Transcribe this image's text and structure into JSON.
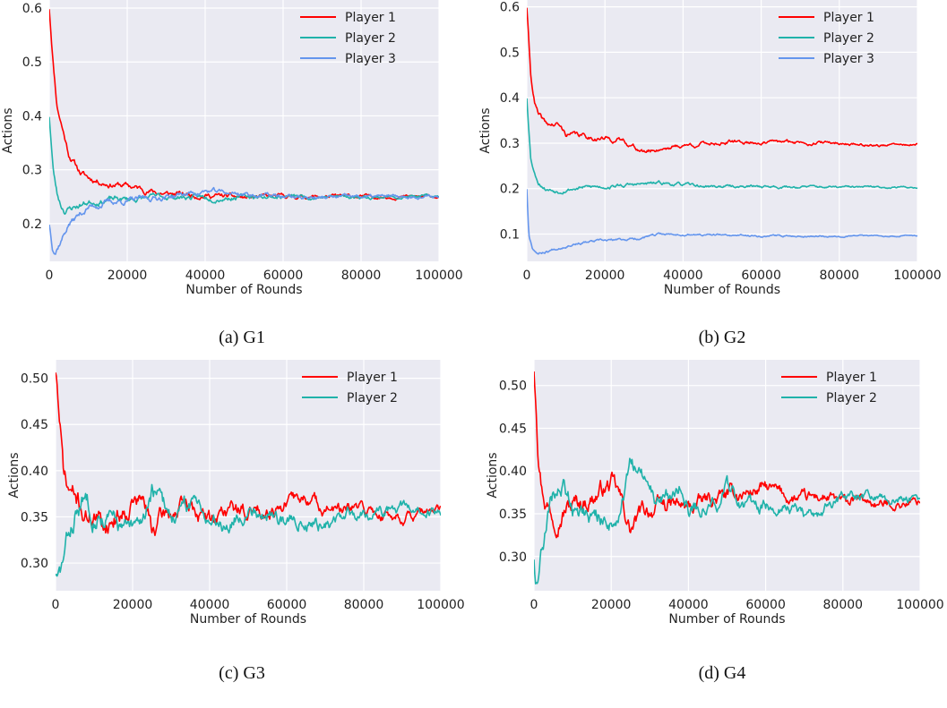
{
  "chart_data": [
    {
      "type": "line",
      "caption": "(a) G1",
      "xlabel": "Number of Rounds",
      "ylabel": "Actions",
      "xlim": [
        0,
        100000
      ],
      "ylim": [
        0.13,
        0.615
      ],
      "xticks": [
        0,
        20000,
        40000,
        60000,
        80000,
        100000
      ],
      "yticks": [
        0.2,
        0.3,
        0.4,
        0.5,
        0.6
      ],
      "ytick_labels": [
        "0.2",
        "0.3",
        "0.4",
        "0.5",
        "0.6"
      ],
      "grid": true,
      "legend_position": "top-right",
      "series": [
        {
          "name": "Player 1",
          "color": "#ff0000",
          "noise": 0.004,
          "seed": 11,
          "points": [
            [
              0,
              0.6
            ],
            [
              1000,
              0.5
            ],
            [
              2000,
              0.42
            ],
            [
              3000,
              0.39
            ],
            [
              5000,
              0.33
            ],
            [
              8000,
              0.295
            ],
            [
              10000,
              0.285
            ],
            [
              15000,
              0.275
            ],
            [
              20000,
              0.27
            ],
            [
              25000,
              0.262
            ],
            [
              30000,
              0.255
            ],
            [
              40000,
              0.253
            ],
            [
              50000,
              0.248
            ],
            [
              60000,
              0.25
            ],
            [
              70000,
              0.25
            ],
            [
              80000,
              0.25
            ],
            [
              90000,
              0.25
            ],
            [
              100000,
              0.25
            ]
          ]
        },
        {
          "name": "Player 2",
          "color": "#20b2aa",
          "noise": 0.004,
          "seed": 23,
          "points": [
            [
              0,
              0.4
            ],
            [
              1000,
              0.3
            ],
            [
              2000,
              0.255
            ],
            [
              3000,
              0.235
            ],
            [
              4000,
              0.225
            ],
            [
              6000,
              0.23
            ],
            [
              10000,
              0.24
            ],
            [
              15000,
              0.245
            ],
            [
              20000,
              0.245
            ],
            [
              30000,
              0.25
            ],
            [
              40000,
              0.248
            ],
            [
              50000,
              0.25
            ],
            [
              60000,
              0.25
            ],
            [
              80000,
              0.25
            ],
            [
              100000,
              0.25
            ]
          ]
        },
        {
          "name": "Player 3",
          "color": "#6495ed",
          "noise": 0.004,
          "seed": 37,
          "points": [
            [
              0,
              0.2
            ],
            [
              800,
              0.16
            ],
            [
              1500,
              0.15
            ],
            [
              3000,
              0.17
            ],
            [
              5000,
              0.2
            ],
            [
              10000,
              0.23
            ],
            [
              15000,
              0.24
            ],
            [
              20000,
              0.242
            ],
            [
              30000,
              0.25
            ],
            [
              40000,
              0.26
            ],
            [
              50000,
              0.255
            ],
            [
              60000,
              0.25
            ],
            [
              70000,
              0.248
            ],
            [
              80000,
              0.25
            ],
            [
              100000,
              0.25
            ]
          ]
        }
      ]
    },
    {
      "type": "line",
      "caption": "(b) G2",
      "xlabel": "Number of Rounds",
      "ylabel": "Actions",
      "xlim": [
        0,
        100000
      ],
      "ylim": [
        0.04,
        0.615
      ],
      "xticks": [
        0,
        20000,
        40000,
        60000,
        80000,
        100000
      ],
      "yticks": [
        0.1,
        0.2,
        0.3,
        0.4,
        0.5,
        0.6
      ],
      "ytick_labels": [
        "0.1",
        "0.2",
        "0.3",
        "0.4",
        "0.5",
        "0.6"
      ],
      "grid": true,
      "legend_position": "top-right",
      "series": [
        {
          "name": "Player 1",
          "color": "#ff0000",
          "noise": 0.004,
          "seed": 41,
          "points": [
            [
              0,
              0.6
            ],
            [
              1000,
              0.45
            ],
            [
              2000,
              0.39
            ],
            [
              3000,
              0.36
            ],
            [
              5000,
              0.34
            ],
            [
              8000,
              0.34
            ],
            [
              10000,
              0.32
            ],
            [
              20000,
              0.31
            ],
            [
              25000,
              0.305
            ],
            [
              30000,
              0.28
            ],
            [
              35000,
              0.29
            ],
            [
              40000,
              0.295
            ],
            [
              50000,
              0.302
            ],
            [
              60000,
              0.302
            ],
            [
              70000,
              0.302
            ],
            [
              80000,
              0.3
            ],
            [
              90000,
              0.295
            ],
            [
              100000,
              0.297
            ]
          ]
        },
        {
          "name": "Player 2",
          "color": "#20b2aa",
          "noise": 0.003,
          "seed": 53,
          "points": [
            [
              0,
              0.4
            ],
            [
              1000,
              0.27
            ],
            [
              2000,
              0.235
            ],
            [
              3000,
              0.215
            ],
            [
              5000,
              0.2
            ],
            [
              8000,
              0.195
            ],
            [
              10000,
              0.2
            ],
            [
              20000,
              0.205
            ],
            [
              35000,
              0.212
            ],
            [
              45000,
              0.205
            ],
            [
              60000,
              0.205
            ],
            [
              80000,
              0.203
            ],
            [
              100000,
              0.203
            ]
          ]
        },
        {
          "name": "Player 3",
          "color": "#6495ed",
          "noise": 0.002,
          "seed": 67,
          "points": [
            [
              0,
              0.2
            ],
            [
              500,
              0.1
            ],
            [
              1500,
              0.07
            ],
            [
              3000,
              0.058
            ],
            [
              5000,
              0.062
            ],
            [
              8000,
              0.07
            ],
            [
              12000,
              0.08
            ],
            [
              20000,
              0.085
            ],
            [
              28000,
              0.09
            ],
            [
              35000,
              0.1
            ],
            [
              45000,
              0.098
            ],
            [
              60000,
              0.096
            ],
            [
              80000,
              0.096
            ],
            [
              100000,
              0.097
            ]
          ]
        }
      ]
    },
    {
      "type": "line",
      "caption": "(c) G3",
      "xlabel": "Number of Rounds",
      "ylabel": "Actions",
      "xlim": [
        0,
        100000
      ],
      "ylim": [
        0.27,
        0.52
      ],
      "xticks": [
        0,
        20000,
        40000,
        60000,
        80000,
        100000
      ],
      "yticks": [
        0.3,
        0.35,
        0.4,
        0.45,
        0.5
      ],
      "ytick_labels": [
        "0.30",
        "0.35",
        "0.40",
        "0.45",
        "0.50"
      ],
      "grid": true,
      "legend_position": "top-right",
      "series": [
        {
          "name": "Player 1",
          "color": "#ff0000",
          "noise": 0.008,
          "seed": 71,
          "points": [
            [
              0,
              0.51
            ],
            [
              500,
              0.49
            ],
            [
              1000,
              0.45
            ],
            [
              2000,
              0.4
            ],
            [
              3000,
              0.38
            ],
            [
              5000,
              0.37
            ],
            [
              8000,
              0.35
            ],
            [
              10000,
              0.355
            ],
            [
              12000,
              0.34
            ],
            [
              15000,
              0.35
            ],
            [
              18000,
              0.36
            ],
            [
              20000,
              0.37
            ],
            [
              23000,
              0.365
            ],
            [
              25000,
              0.335
            ],
            [
              28000,
              0.35
            ],
            [
              30000,
              0.355
            ],
            [
              35000,
              0.36
            ],
            [
              40000,
              0.345
            ],
            [
              45000,
              0.36
            ],
            [
              50000,
              0.355
            ],
            [
              55000,
              0.36
            ],
            [
              60000,
              0.365
            ],
            [
              65000,
              0.37
            ],
            [
              70000,
              0.36
            ],
            [
              75000,
              0.355
            ],
            [
              80000,
              0.358
            ],
            [
              85000,
              0.352
            ],
            [
              90000,
              0.35
            ],
            [
              95000,
              0.352
            ],
            [
              100000,
              0.355
            ]
          ]
        },
        {
          "name": "Player 2",
          "color": "#20b2aa",
          "noise": 0.008,
          "seed": 83,
          "points": [
            [
              0,
              0.29
            ],
            [
              500,
              0.28
            ],
            [
              1500,
              0.29
            ],
            [
              3000,
              0.32
            ],
            [
              5000,
              0.35
            ],
            [
              8000,
              0.37
            ],
            [
              10000,
              0.36
            ],
            [
              15000,
              0.345
            ],
            [
              20000,
              0.33
            ],
            [
              22000,
              0.34
            ],
            [
              25000,
              0.38
            ],
            [
              28000,
              0.36
            ],
            [
              32000,
              0.35
            ],
            [
              37000,
              0.37
            ],
            [
              40000,
              0.35
            ],
            [
              45000,
              0.345
            ],
            [
              50000,
              0.36
            ],
            [
              55000,
              0.355
            ],
            [
              60000,
              0.345
            ],
            [
              65000,
              0.35
            ],
            [
              70000,
              0.34
            ],
            [
              75000,
              0.35
            ],
            [
              80000,
              0.355
            ],
            [
              90000,
              0.358
            ],
            [
              100000,
              0.355
            ]
          ]
        }
      ]
    },
    {
      "type": "line",
      "caption": "(d) G4",
      "xlabel": "Number of Rounds",
      "ylabel": "Actions",
      "xlim": [
        0,
        100000
      ],
      "ylim": [
        0.26,
        0.53
      ],
      "xticks": [
        0,
        20000,
        40000,
        60000,
        80000,
        100000
      ],
      "yticks": [
        0.3,
        0.35,
        0.4,
        0.45,
        0.5
      ],
      "ytick_labels": [
        "0.30",
        "0.35",
        "0.40",
        "0.45",
        "0.50"
      ],
      "grid": true,
      "legend_position": "top-right",
      "series": [
        {
          "name": "Player 1",
          "color": "#ff0000",
          "noise": 0.008,
          "seed": 97,
          "points": [
            [
              0,
              0.52
            ],
            [
              500,
              0.49
            ],
            [
              1000,
              0.44
            ],
            [
              2000,
              0.39
            ],
            [
              3000,
              0.37
            ],
            [
              5000,
              0.35
            ],
            [
              8000,
              0.36
            ],
            [
              10000,
              0.36
            ],
            [
              15000,
              0.37
            ],
            [
              20000,
              0.385
            ],
            [
              22000,
              0.37
            ],
            [
              25000,
              0.33
            ],
            [
              28000,
              0.35
            ],
            [
              30000,
              0.355
            ],
            [
              35000,
              0.36
            ],
            [
              40000,
              0.355
            ],
            [
              45000,
              0.365
            ],
            [
              50000,
              0.37
            ],
            [
              55000,
              0.375
            ],
            [
              60000,
              0.38
            ],
            [
              65000,
              0.37
            ],
            [
              70000,
              0.365
            ],
            [
              75000,
              0.37
            ],
            [
              80000,
              0.362
            ],
            [
              85000,
              0.365
            ],
            [
              90000,
              0.36
            ],
            [
              95000,
              0.362
            ],
            [
              100000,
              0.365
            ]
          ]
        },
        {
          "name": "Player 2",
          "color": "#20b2aa",
          "noise": 0.008,
          "seed": 109,
          "points": [
            [
              0,
              0.3
            ],
            [
              500,
              0.27
            ],
            [
              1500,
              0.3
            ],
            [
              3000,
              0.33
            ],
            [
              5000,
              0.37
            ],
            [
              8000,
              0.38
            ],
            [
              10000,
              0.36
            ],
            [
              15000,
              0.35
            ],
            [
              20000,
              0.34
            ],
            [
              22000,
              0.35
            ],
            [
              25000,
              0.405
            ],
            [
              28000,
              0.39
            ],
            [
              30000,
              0.37
            ],
            [
              35000,
              0.365
            ],
            [
              38000,
              0.385
            ],
            [
              40000,
              0.355
            ],
            [
              45000,
              0.36
            ],
            [
              50000,
              0.375
            ],
            [
              55000,
              0.355
            ],
            [
              60000,
              0.36
            ],
            [
              65000,
              0.365
            ],
            [
              70000,
              0.345
            ],
            [
              75000,
              0.355
            ],
            [
              80000,
              0.365
            ],
            [
              85000,
              0.37
            ],
            [
              90000,
              0.368
            ],
            [
              100000,
              0.366
            ]
          ]
        }
      ]
    }
  ]
}
